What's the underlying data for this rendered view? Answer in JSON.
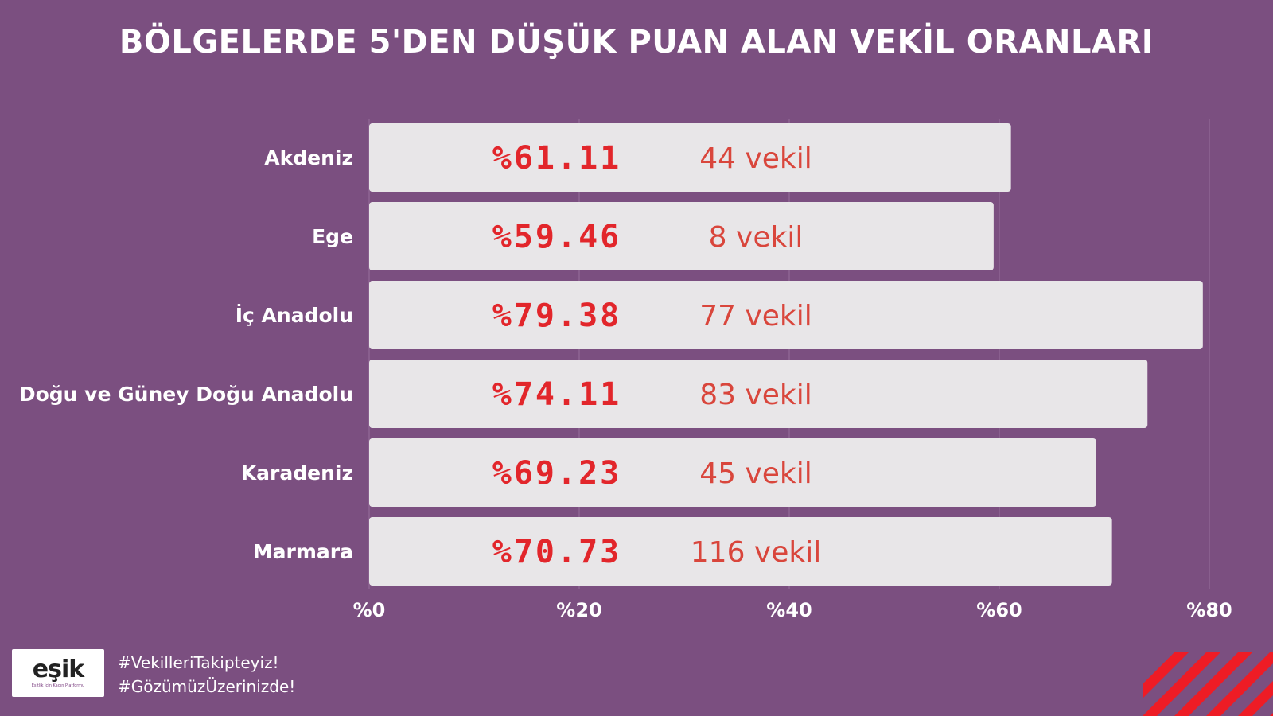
{
  "title": "BÖLGELERDE 5'DEN DÜŞÜK PUAN ALAN VEKİL ORANLARI",
  "chart_data": {
    "type": "bar",
    "orientation": "horizontal",
    "title": "BÖLGELERDE 5'DEN DÜŞÜK PUAN ALAN VEKİL ORANLARI",
    "categories": [
      "Akdeniz",
      "Ege",
      "İç Anadolu",
      "Doğu ve Güney Doğu Anadolu",
      "Karadeniz",
      "Marmara"
    ],
    "values": [
      61.11,
      59.46,
      79.38,
      74.11,
      69.23,
      70.73
    ],
    "value_labels": [
      "%61.11",
      "%59.46",
      "%79.38",
      "%74.11",
      "%69.23",
      "%70.73"
    ],
    "count_labels": [
      "44 vekil",
      "8 vekil",
      "77 vekil",
      "83 vekil",
      "45 vekil",
      "116 vekil"
    ],
    "xlim": [
      0,
      80
    ],
    "x_ticks": [
      0,
      20,
      40,
      60,
      80
    ],
    "x_tick_labels": [
      "%0",
      "%20",
      "%40",
      "%60",
      "%80"
    ],
    "grid": true,
    "bar_color": "#e8e6e8",
    "label_color": "#e2262b",
    "background": "#7b4f80"
  },
  "logo": {
    "word": "eşik",
    "subtitle": "Eşitlik İçin Kadın Platformu"
  },
  "hashtags": [
    "#VekilleriTakipteyiz!",
    "#GözümüzÜzerinizde!"
  ],
  "accent_color": "#ee1c25"
}
